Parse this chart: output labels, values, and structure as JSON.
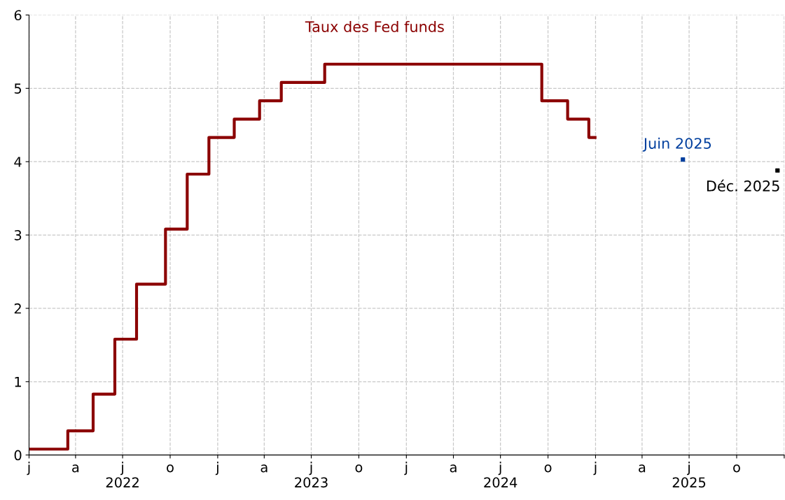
{
  "chart_data": {
    "type": "step",
    "xlim": [
      "2022-01-01",
      "2026-01-01"
    ],
    "ylim": [
      0,
      6
    ],
    "yticks": [
      0,
      1,
      2,
      3,
      4,
      5,
      6
    ],
    "xticks": [
      {
        "value": "2022-01-01",
        "label": "j"
      },
      {
        "value": "2022-04-01",
        "label": "a"
      },
      {
        "value": "2022-07-01",
        "label": "j\n2022"
      },
      {
        "value": "2022-10-01",
        "label": "o"
      },
      {
        "value": "2023-01-01",
        "label": "j"
      },
      {
        "value": "2023-04-01",
        "label": "a"
      },
      {
        "value": "2023-07-01",
        "label": "j\n2023"
      },
      {
        "value": "2023-10-01",
        "label": "o"
      },
      {
        "value": "2024-01-01",
        "label": "j"
      },
      {
        "value": "2024-04-01",
        "label": "a"
      },
      {
        "value": "2024-07-01",
        "label": "j\n2024"
      },
      {
        "value": "2024-10-01",
        "label": "o"
      },
      {
        "value": "2025-01-01",
        "label": "j"
      },
      {
        "value": "2025-04-01",
        "label": "a"
      },
      {
        "value": "2025-07-01",
        "label": "j\n2025"
      },
      {
        "value": "2025-10-01",
        "label": "o"
      },
      {
        "value": "2026-01-01",
        "label": null
      }
    ],
    "grid": true,
    "series": [
      {
        "name": "Taux des Fed funds",
        "color": "#8b0000",
        "x": [
          "2022-01-01",
          "2022-03-17",
          "2022-05-05",
          "2022-06-16",
          "2022-07-28",
          "2022-09-22",
          "2022-11-03",
          "2022-12-15",
          "2023-02-02",
          "2023-03-23",
          "2023-05-04",
          "2023-07-27",
          "2024-09-19",
          "2024-11-08",
          "2024-12-19",
          "2024-12-31"
        ],
        "values": [
          0.08,
          0.33,
          0.83,
          1.58,
          2.33,
          3.08,
          3.83,
          4.33,
          4.58,
          4.83,
          5.08,
          5.33,
          4.83,
          4.58,
          4.33,
          4.33
        ]
      },
      {
        "name": "Juin 2025",
        "color": "#003f9e",
        "type": "scatter",
        "marker": "square",
        "x": [
          "2025-06-19"
        ],
        "values": [
          4.03
        ]
      },
      {
        "name": "Déc. 2025",
        "color": "#000000",
        "type": "scatter",
        "marker": "square",
        "x": [
          "2025-12-19"
        ],
        "values": [
          3.88
        ]
      }
    ]
  }
}
